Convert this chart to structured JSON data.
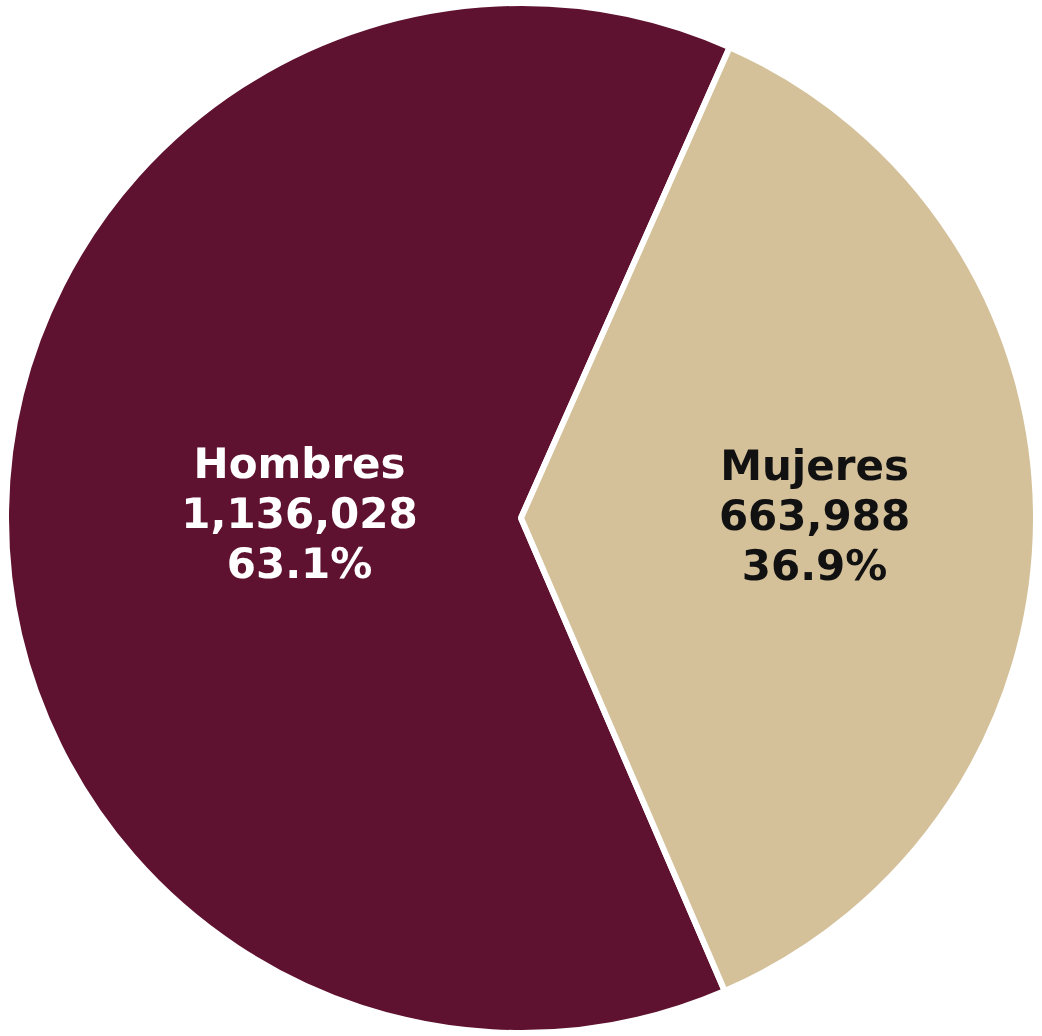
{
  "chart_data": {
    "type": "pie",
    "categories": [
      "Hombres",
      "Mujeres"
    ],
    "values": [
      1136028,
      663988
    ],
    "value_labels": [
      "1,136,028\n63.1%",
      "663,988\n36.9%"
    ],
    "colors": [
      "#5f1230",
      "#d4c19a"
    ],
    "legend": false
  }
}
